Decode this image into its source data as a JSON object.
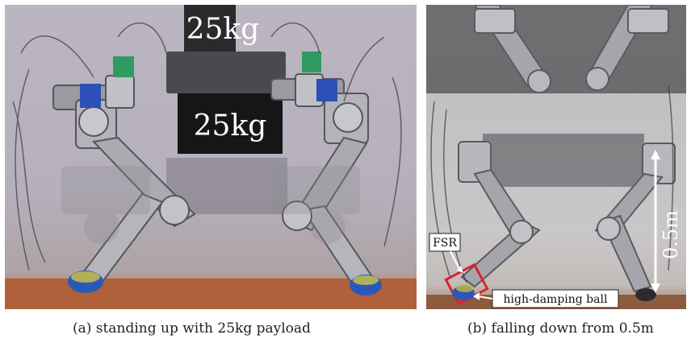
{
  "panel_a": {
    "payload_label_top": "25kg",
    "payload_label_center": "25kg",
    "caption": "(a) standing up with 25kg payload"
  },
  "panel_b": {
    "height_label": "0.5m",
    "fsr_label": "FSR",
    "ball_label": "high-damping ball",
    "caption": "(b) falling down from 0.5m"
  },
  "colors": {
    "floor": "#b0603a",
    "sensor_box": "#e0202a",
    "ball": "#2a58b8",
    "springs": "#2e4fb8",
    "springs_green": "#2f9b62"
  }
}
